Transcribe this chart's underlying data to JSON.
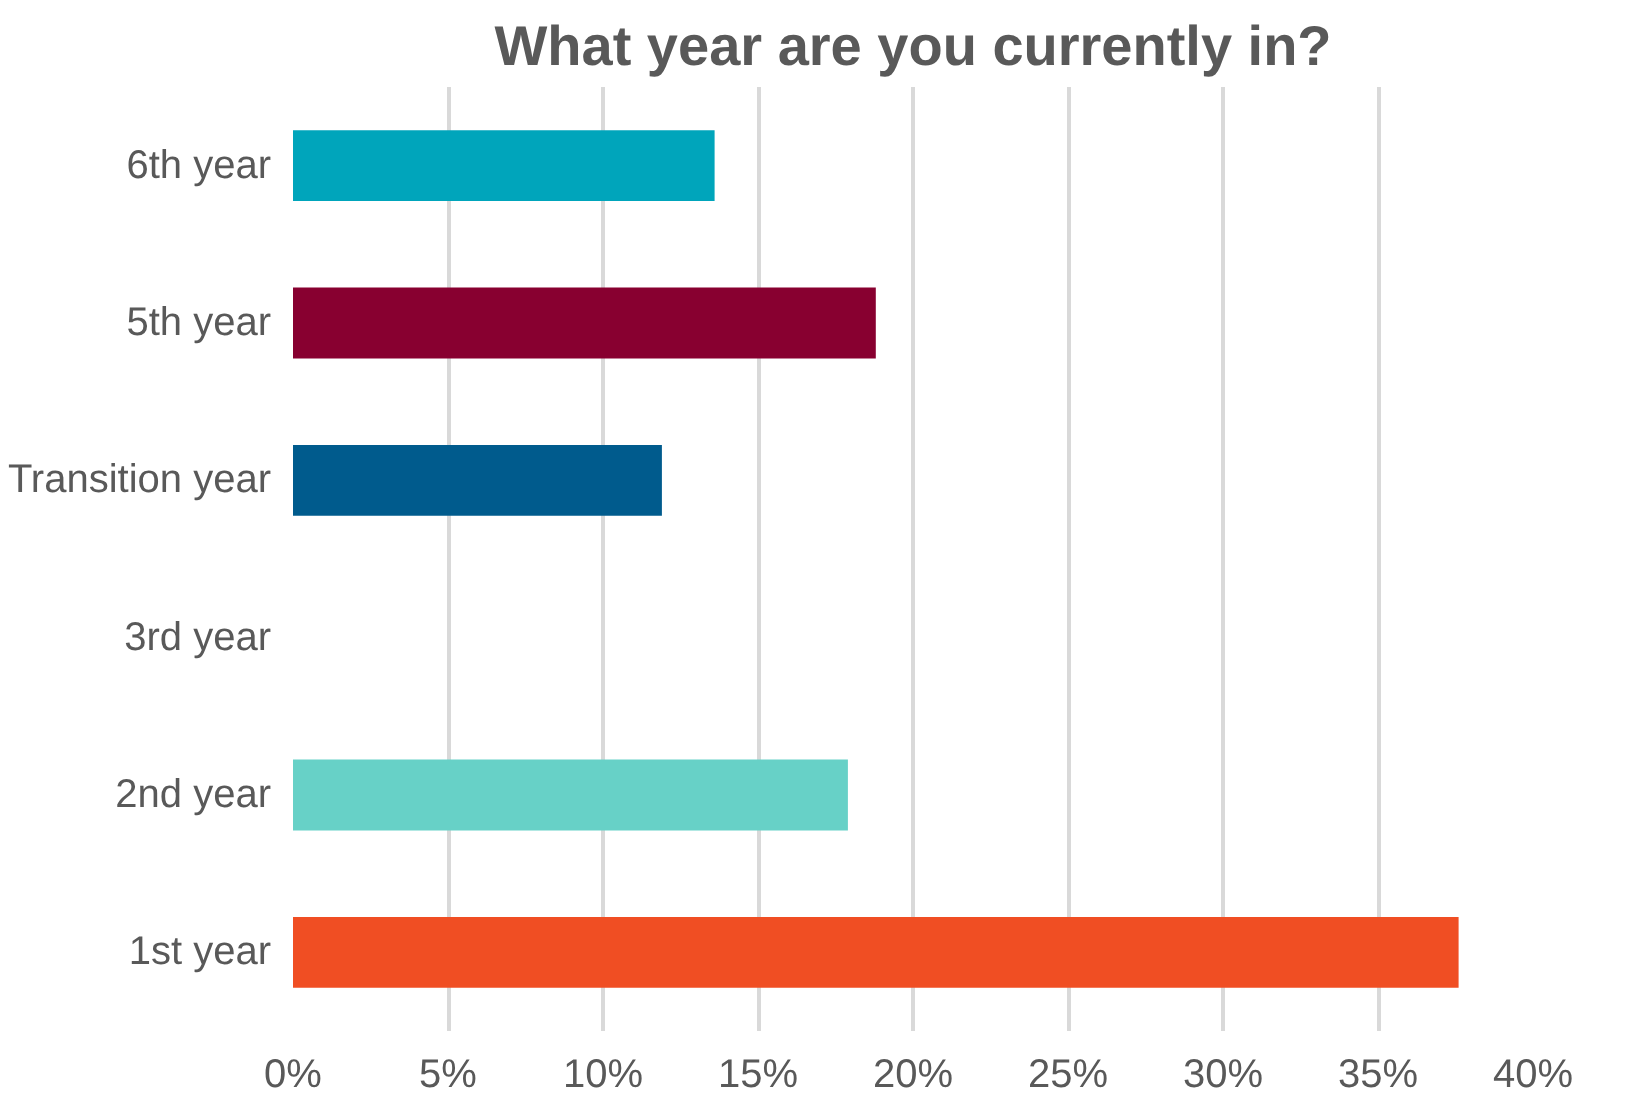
{
  "chart_data": {
    "type": "bar",
    "orientation": "horizontal",
    "title": "What year are you currently in?",
    "categories": [
      "6th year",
      "5th year",
      "Transition year",
      "3rd year",
      "2nd year",
      "1st year"
    ],
    "values": [
      13.6,
      18.8,
      11.9,
      0,
      17.9,
      37.6
    ],
    "colors": [
      "#00a5bb",
      "#880030",
      "#005b8d",
      "#cccccc",
      "#67d1c7",
      "#f04e23"
    ],
    "xlim": [
      0,
      40
    ],
    "xticks": [
      {
        "value": 0,
        "label": "0%"
      },
      {
        "value": 5,
        "label": "5%"
      },
      {
        "value": 10,
        "label": "10%"
      },
      {
        "value": 15,
        "label": "15%"
      },
      {
        "value": 20,
        "label": "20%"
      },
      {
        "value": 25,
        "label": "25%"
      },
      {
        "value": 30,
        "label": "30%"
      },
      {
        "value": 35,
        "label": "35%"
      },
      {
        "value": 40,
        "label": "40%"
      }
    ],
    "grid": "x"
  }
}
